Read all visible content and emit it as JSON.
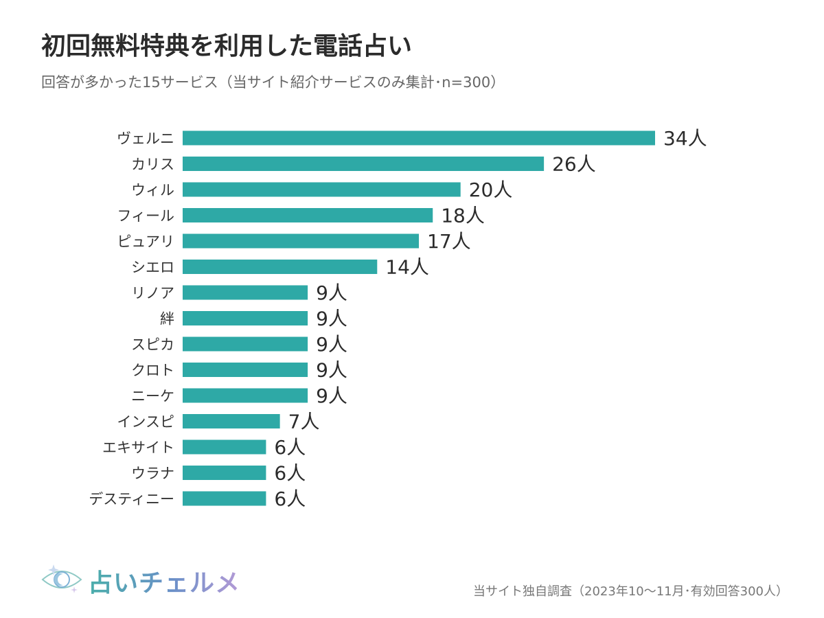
{
  "header": {
    "title": "初回無料特典を利用した電話占い",
    "subtitle": "回答が多かった15サービス（当サイト紹介サービスのみ集計･n=300）"
  },
  "footer": {
    "source_note": "当サイト独自調査（2023年10〜11月･有効回答300人）",
    "logo_text": "占いチェルメ",
    "logo_icon": "eye-icon"
  },
  "colors": {
    "bar": "#2ea9a6",
    "label": "#333333",
    "value": "#2b2b2b"
  },
  "chart_data": {
    "type": "bar",
    "orientation": "horizontal",
    "title": "初回無料特典を利用した電話占い",
    "subtitle": "回答が多かった15サービス（当サイト紹介サービスのみ集計･n=300）",
    "value_suffix": "人",
    "categories": [
      "ヴェルニ",
      "カリス",
      "ウィル",
      "フィール",
      "ピュアリ",
      "シエロ",
      "リノア",
      "絆",
      "スピカ",
      "クロト",
      "ニーケ",
      "インスピ",
      "エキサイト",
      "ウラナ",
      "デスティニー"
    ],
    "values": [
      34,
      26,
      20,
      18,
      17,
      14,
      9,
      9,
      9,
      9,
      9,
      7,
      6,
      6,
      6
    ],
    "xlim": [
      0,
      34
    ],
    "grid": false,
    "legend": "none"
  }
}
